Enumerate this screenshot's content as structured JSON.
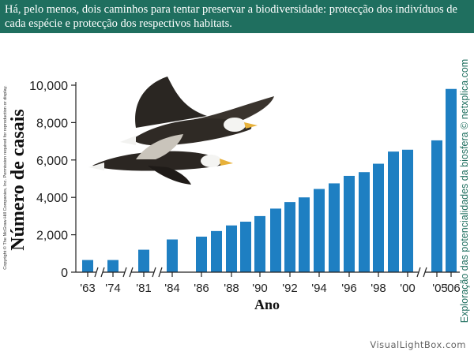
{
  "caption": "Há, pelo menos, dois caminhos para tentar preservar a biodiversidade: protecção dos indivíduos de cada espécie e protecção dos respectivos habitats.",
  "copyright": "Copyright © The McGraw-Hill Companies, Inc. Permission required for reproduction or display.",
  "credit": "Exploração das potencialidades da biosfera © netxplica.com",
  "watermark": "VisualLightBox.com",
  "colors": {
    "banner": "#1f6f5f",
    "bar": "#1e7fc2",
    "credit": "#1f6f5f"
  },
  "chart_data": {
    "type": "bar",
    "ylabel": "Número de casais",
    "xlabel": "Ano",
    "ylim": [
      0,
      10000
    ],
    "yticks": [
      0,
      2000,
      4000,
      6000,
      8000,
      10000
    ],
    "ytick_labels": [
      "0",
      "2,000",
      "4,000",
      "6,000",
      "8,000",
      "10,000"
    ],
    "grid": false,
    "axis_breaks": [
      "'63-'74",
      "'74-'81",
      "'81-'84",
      "'00-'05"
    ],
    "x": [
      "1963",
      "1974",
      "1981",
      "1984",
      "1986",
      "1987",
      "1988",
      "1989",
      "1990",
      "1991",
      "1992",
      "1993",
      "1994",
      "1995",
      "1996",
      "1997",
      "1998",
      "1999",
      "2000",
      "2005",
      "2006"
    ],
    "values": [
      650,
      650,
      1200,
      1750,
      1900,
      2200,
      2500,
      2700,
      3000,
      3400,
      3750,
      4000,
      4450,
      4750,
      5150,
      5350,
      5800,
      6450,
      6550,
      7050,
      9800
    ],
    "tick_labels": [
      {
        "index": 0,
        "label": "'63"
      },
      {
        "index": 1,
        "label": "'74"
      },
      {
        "index": 2,
        "label": "'81"
      },
      {
        "index": 3,
        "label": "'84"
      },
      {
        "index": 4,
        "label": "'86"
      },
      {
        "index": 6,
        "label": "'88"
      },
      {
        "index": 8,
        "label": "'90"
      },
      {
        "index": 10,
        "label": "'92"
      },
      {
        "index": 12,
        "label": "'94"
      },
      {
        "index": 14,
        "label": "'96"
      },
      {
        "index": 16,
        "label": "'98"
      },
      {
        "index": 18,
        "label": "'00"
      },
      {
        "index": 19,
        "label": "'05"
      },
      {
        "index": 20,
        "label": "'06"
      }
    ]
  }
}
